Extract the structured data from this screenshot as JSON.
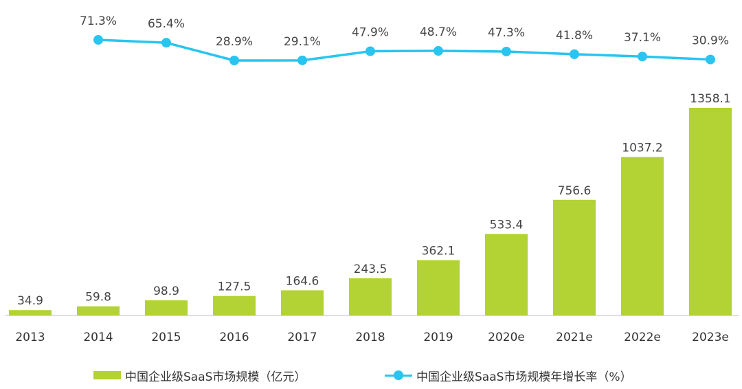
{
  "chart_data": {
    "type": "bar",
    "categories": [
      "2013",
      "2014",
      "2015",
      "2016",
      "2017",
      "2018",
      "2019",
      "2020e",
      "2021e",
      "2022e",
      "2023e"
    ],
    "series": [
      {
        "name": "中国企业级SaaS市场规模（亿元）",
        "type": "bar",
        "color": "#b3d233",
        "values": [
          34.9,
          59.8,
          98.9,
          127.5,
          164.6,
          243.5,
          362.1,
          533.4,
          756.6,
          1037.2,
          1358.1
        ],
        "labels": [
          "34.9",
          "59.8",
          "98.9",
          "127.5",
          "164.6",
          "243.5",
          "362.1",
          "533.4",
          "756.6",
          "1037.2",
          "1358.1"
        ]
      },
      {
        "name": "中国企业级SaaS市场规模年增长率（%）",
        "type": "line",
        "color": "#29c4f0",
        "values": [
          null,
          71.3,
          65.4,
          28.9,
          29.1,
          47.9,
          48.7,
          47.3,
          41.8,
          37.1,
          30.9
        ],
        "labels": [
          "",
          "71.3%",
          "65.4%",
          "28.9%",
          "29.1%",
          "47.9%",
          "48.7%",
          "47.3%",
          "41.8%",
          "37.1%",
          "30.9%"
        ]
      }
    ],
    "legend_position": "bottom",
    "grid": false
  }
}
